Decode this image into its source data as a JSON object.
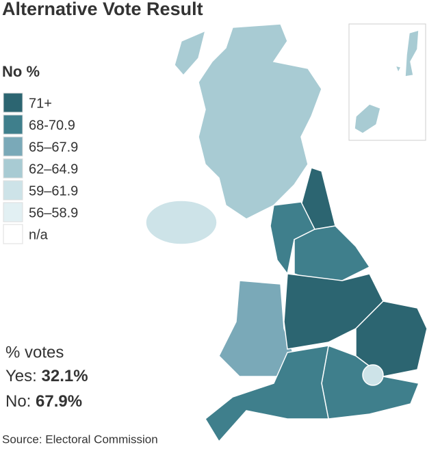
{
  "title": "Alternative Vote Result",
  "legend": {
    "title": "No %",
    "items": [
      {
        "label": "71+",
        "color": "#2c6571"
      },
      {
        "label": "68-70.9",
        "color": "#3f7f8c"
      },
      {
        "label": "65–67.9",
        "color": "#7aa9b8"
      },
      {
        "label": "62–64.9",
        "color": "#a8cbd3"
      },
      {
        "label": "59–61.9",
        "color": "#cde3e8"
      },
      {
        "label": "56–58.9",
        "color": "#e2f0f3"
      },
      {
        "label": "n/a",
        "color": "#ffffff"
      }
    ]
  },
  "summary": {
    "heading": "% votes",
    "yes_label": "Yes:",
    "yes_value": "32.1%",
    "no_label": "No:",
    "no_value": "67.9%"
  },
  "source": "Source: Electoral Commission"
}
